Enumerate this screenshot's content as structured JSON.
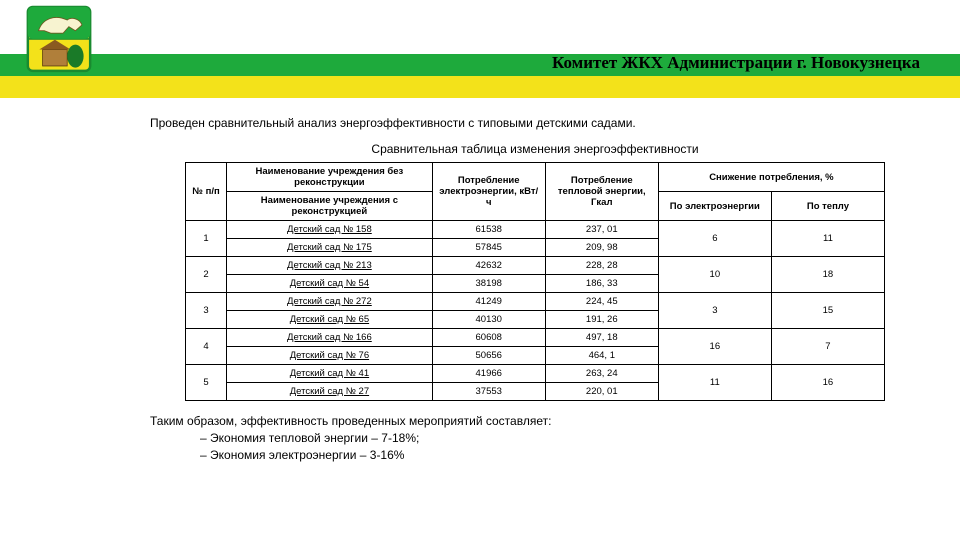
{
  "header": {
    "org_title": "Комитет ЖКХ Администрации г. Новокузнецка",
    "band_green_color": "#1eaa3c",
    "band_yellow_color": "#f3e21a"
  },
  "text": {
    "intro": "Проведен сравнительный анализ энергоэффективности с типовыми детскими садами.",
    "table_title": "Сравнительная таблица изменения энергоэффективности"
  },
  "table": {
    "columns": {
      "num": "№ п/п",
      "name_no_recon": "Наименование учреждения без реконструкции",
      "name_with_recon": "Наименование учреждения с реконструкцией",
      "elec": "Потребление электроэнергии, кВт/ч",
      "heat": "Потребление тепловой энергии, Гкал",
      "reduction": "Снижение потребления, %",
      "reduction_elec": "По электроэнергии",
      "reduction_heat": "По теплу"
    },
    "groups": [
      {
        "num": "1",
        "top": {
          "name": "Детский сад № 158",
          "elec": "61538",
          "heat": "237, 01"
        },
        "bottom": {
          "name": "Детский сад № 175",
          "elec": "57845",
          "heat": "209, 98"
        },
        "red_elec": "6",
        "red_heat": "11"
      },
      {
        "num": "2",
        "top": {
          "name": "Детский сад № 213",
          "elec": "42632",
          "heat": "228, 28"
        },
        "bottom": {
          "name": "Детский сад № 54",
          "elec": "38198",
          "heat": "186, 33"
        },
        "red_elec": "10",
        "red_heat": "18"
      },
      {
        "num": "3",
        "top": {
          "name": "Детский сад № 272",
          "elec": "41249",
          "heat": "224, 45"
        },
        "bottom": {
          "name": "Детский сад № 65",
          "elec": "40130",
          "heat": "191, 26"
        },
        "red_elec": "3",
        "red_heat": "15"
      },
      {
        "num": "4",
        "top": {
          "name": "Детский сад № 166",
          "elec": "60608",
          "heat": "497, 18"
        },
        "bottom": {
          "name": "Детский сад № 76",
          "elec": "50656",
          "heat": "464, 1"
        },
        "red_elec": "16",
        "red_heat": "7"
      },
      {
        "num": "5",
        "top": {
          "name": "Детский сад № 41",
          "elec": "41966",
          "heat": "263, 24"
        },
        "bottom": {
          "name": "Детский сад № 27",
          "elec": "37553",
          "heat": "220, 01"
        },
        "red_elec": "11",
        "red_heat": "16"
      }
    ]
  },
  "conclusion": {
    "line1": "Таким образом, эффективность проведенных мероприятий составляет:",
    "line2": "–  Экономия тепловой энергии – 7-18%;",
    "line3": "–  Экономия электроэнергии – 3-16%"
  }
}
